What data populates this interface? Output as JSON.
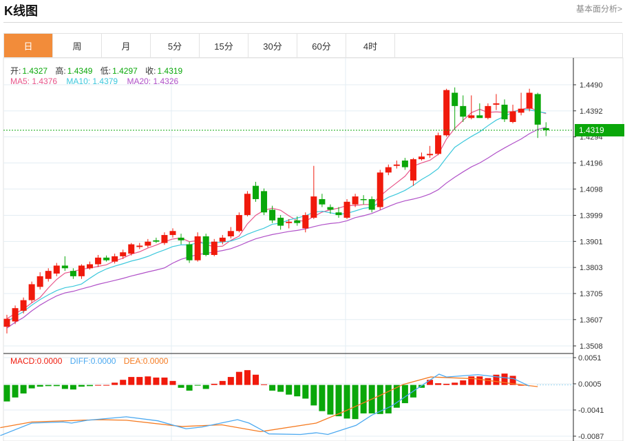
{
  "header": {
    "title": "K线图",
    "link": "基本面分析>"
  },
  "tabs": [
    {
      "label": "日",
      "active": true
    },
    {
      "label": "周"
    },
    {
      "label": "月"
    },
    {
      "label": "5分"
    },
    {
      "label": "15分"
    },
    {
      "label": "30分"
    },
    {
      "label": "60分"
    },
    {
      "label": "4时"
    }
  ],
  "ohlc_info": {
    "open_label": "开:",
    "open": "1.4327",
    "high_label": "高:",
    "high": "1.4349",
    "low_label": "低:",
    "low": "1.4297",
    "close_label": "收:",
    "close": "1.4319"
  },
  "ma_info": {
    "ma5": "MA5: 1.4376",
    "ma10": "MA10: 1.4379",
    "ma20": "MA20: 1.4326"
  },
  "macd_info": {
    "macd": "MACD:0.0000",
    "diff": "DIFF:0.0000",
    "dea": "DEA:0.0000"
  },
  "colors": {
    "up": "#f01a0c",
    "down": "#0aa70a",
    "ma5": "#e8558a",
    "ma10": "#3cc8dc",
    "ma20": "#b050c8",
    "diff": "#4aa8f0",
    "dea": "#f57a20",
    "tab_active": "#f28c3a"
  },
  "chart_data": {
    "type": "candlestick",
    "price_axis": {
      "ticks": [
        "1.4490",
        "1.4392",
        "1.4294",
        "1.4196",
        "1.4098",
        "1.3999",
        "1.3901",
        "1.3803",
        "1.3705",
        "1.3607",
        "1.3508"
      ],
      "range": [
        1.3508,
        1.449
      ]
    },
    "current_price": "1.4319",
    "candles": [
      [
        1.358,
        1.3625,
        1.3555,
        1.361
      ],
      [
        1.36,
        1.366,
        1.359,
        1.365
      ],
      [
        1.364,
        1.369,
        1.363,
        1.368
      ],
      [
        1.368,
        1.375,
        1.367,
        1.374
      ],
      [
        1.373,
        1.3785,
        1.372,
        1.377
      ],
      [
        1.376,
        1.38,
        1.375,
        1.379
      ],
      [
        1.378,
        1.382,
        1.377,
        1.381
      ],
      [
        1.381,
        1.3845,
        1.379,
        1.38
      ],
      [
        1.379,
        1.38,
        1.376,
        1.377
      ],
      [
        1.377,
        1.3815,
        1.376,
        1.381
      ],
      [
        1.38,
        1.3825,
        1.3795,
        1.3815
      ],
      [
        1.3815,
        1.385,
        1.3805,
        1.384
      ],
      [
        1.384,
        1.3848,
        1.3825,
        1.383
      ],
      [
        1.3825,
        1.3855,
        1.3818,
        1.3845
      ],
      [
        1.3845,
        1.387,
        1.3835,
        1.386
      ],
      [
        1.3855,
        1.3895,
        1.3848,
        1.389
      ],
      [
        1.388,
        1.3895,
        1.3872,
        1.3885
      ],
      [
        1.3885,
        1.391,
        1.3878,
        1.39
      ],
      [
        1.3905,
        1.3915,
        1.3895,
        1.39
      ],
      [
        1.3895,
        1.3935,
        1.3888,
        1.3925
      ],
      [
        1.3925,
        1.395,
        1.3915,
        1.394
      ],
      [
        1.3915,
        1.393,
        1.389,
        1.3905
      ],
      [
        1.389,
        1.39,
        1.382,
        1.383
      ],
      [
        1.383,
        1.3935,
        1.3825,
        1.392
      ],
      [
        1.392,
        1.393,
        1.3845,
        1.385
      ],
      [
        1.385,
        1.391,
        1.3845,
        1.39
      ],
      [
        1.39,
        1.3925,
        1.389,
        1.3915
      ],
      [
        1.392,
        1.3955,
        1.3912,
        1.394
      ],
      [
        1.394,
        1.401,
        1.3935,
        1.4
      ],
      [
        1.4,
        1.409,
        1.3995,
        1.408
      ],
      [
        1.411,
        1.4125,
        1.405,
        1.406
      ],
      [
        1.409,
        1.41,
        1.4,
        1.401
      ],
      [
        1.402,
        1.4035,
        1.397,
        1.398
      ],
      [
        1.399,
        1.4,
        1.3945,
        1.396
      ],
      [
        1.397,
        1.3985,
        1.395,
        1.3975
      ],
      [
        1.398,
        1.3995,
        1.396,
        1.397
      ],
      [
        1.395,
        1.401,
        1.3935,
        1.4
      ],
      [
        1.399,
        1.4185,
        1.3985,
        1.407
      ],
      [
        1.406,
        1.408,
        1.403,
        1.404
      ],
      [
        1.403,
        1.404,
        1.4005,
        1.402
      ],
      [
        1.401,
        1.403,
        1.399,
        1.4
      ],
      [
        1.399,
        1.406,
        1.3985,
        1.405
      ],
      [
        1.404,
        1.408,
        1.403,
        1.407
      ],
      [
        1.406,
        1.4075,
        1.404,
        1.4058
      ],
      [
        1.406,
        1.407,
        1.401,
        1.402
      ],
      [
        1.403,
        1.417,
        1.402,
        1.416
      ],
      [
        1.416,
        1.419,
        1.415,
        1.418
      ],
      [
        1.4185,
        1.4205,
        1.4175,
        1.419
      ],
      [
        1.4205,
        1.4215,
        1.417,
        1.418
      ],
      [
        1.413,
        1.4215,
        1.411,
        1.421
      ],
      [
        1.421,
        1.4235,
        1.4205,
        1.422
      ],
      [
        1.4225,
        1.426,
        1.4215,
        1.423
      ],
      [
        1.423,
        1.431,
        1.4225,
        1.43
      ],
      [
        1.43,
        1.4475,
        1.4295,
        1.447
      ],
      [
        1.446,
        1.448,
        1.432,
        1.441
      ],
      [
        1.441,
        1.445,
        1.435,
        1.437
      ],
      [
        1.4365,
        1.445,
        1.436,
        1.4375
      ],
      [
        1.4375,
        1.442,
        1.4365,
        1.4365
      ],
      [
        1.4365,
        1.442,
        1.436,
        1.441
      ],
      [
        1.4415,
        1.4455,
        1.4395,
        1.442
      ],
      [
        1.4415,
        1.4435,
        1.435,
        1.436
      ],
      [
        1.435,
        1.4415,
        1.4345,
        1.439
      ],
      [
        1.4385,
        1.446,
        1.4375,
        1.44
      ],
      [
        1.44,
        1.4475,
        1.439,
        1.446
      ],
      [
        1.4455,
        1.446,
        1.429,
        1.434
      ],
      [
        1.4327,
        1.4349,
        1.4297,
        1.4319
      ]
    ],
    "macd_axis": {
      "ticks": [
        "0.0051",
        "0.0005",
        "-0.0041",
        "-0.0087"
      ],
      "range": [
        -0.0093,
        0.006
      ]
    },
    "macd_hist": [
      -0.0029,
      -0.0022,
      -0.0015,
      -0.0006,
      -0.0003,
      -0.0002,
      -0.0002,
      -0.0007,
      -0.0008,
      -0.0003,
      -0.0002,
      0,
      0.0,
      0.0004,
      0.0009,
      0.0014,
      0.0014,
      0.0015,
      0.0013,
      0.0013,
      0.0007,
      -0.0005,
      -0.001,
      -0.0001,
      -0.0007,
      0.0002,
      0.0007,
      0.0014,
      0.0023,
      0.0026,
      0.0018,
      0.0001,
      -0.001,
      -0.0012,
      -0.0017,
      -0.002,
      -0.0024,
      -0.0036,
      -0.0046,
      -0.0052,
      -0.0055,
      -0.0059,
      -0.006,
      -0.005,
      -0.005,
      -0.0051,
      -0.005,
      -0.004,
      -0.0032,
      -0.0022,
      -0.0005,
      0.0009,
      0.0003,
      0.0002,
      0.0004,
      0.0008,
      0.0015,
      0.0015,
      0.0012,
      0.0018,
      0.002,
      0.0016,
      0
    ],
    "diff": [
      [
        -0.8,
        -0.0086
      ],
      [
        3.0,
        -0.0064
      ],
      [
        6.8,
        -0.0062
      ],
      [
        7.8,
        -0.0064
      ],
      [
        9.7,
        -0.0059
      ],
      [
        14.4,
        -0.0053
      ],
      [
        18.2,
        -0.006
      ],
      [
        21.6,
        -0.0074
      ],
      [
        23.5,
        -0.0071
      ],
      [
        27.8,
        -0.0058
      ],
      [
        29.2,
        -0.0064
      ],
      [
        31.6,
        -0.0083
      ],
      [
        35.4,
        -0.0084
      ],
      [
        37.3,
        -0.0081
      ],
      [
        38.7,
        -0.0084
      ],
      [
        42.1,
        -0.0068
      ],
      [
        44,
        -0.005
      ],
      [
        46.4,
        -0.0034
      ],
      [
        49.2,
        -0.0006
      ],
      [
        52.1,
        0.0022
      ],
      [
        53,
        0.0017
      ],
      [
        56.8,
        0.0021
      ],
      [
        61.1,
        0.0014
      ],
      [
        63,
        0.0001
      ]
    ],
    "dea": [
      [
        -0.8,
        -0.0072
      ],
      [
        3.0,
        -0.0062
      ],
      [
        11.1,
        -0.0058
      ],
      [
        14.4,
        -0.0059
      ],
      [
        21.1,
        -0.007
      ],
      [
        25.9,
        -0.0067
      ],
      [
        30.6,
        -0.0079
      ],
      [
        37.3,
        -0.0064
      ],
      [
        40.6,
        -0.0044
      ],
      [
        44.9,
        -0.0016
      ],
      [
        47.8,
        0.0004
      ],
      [
        51.1,
        0.0017
      ],
      [
        56.4,
        0.0014
      ],
      [
        61.1,
        0.0005
      ],
      [
        64,
        0.0
      ]
    ]
  }
}
